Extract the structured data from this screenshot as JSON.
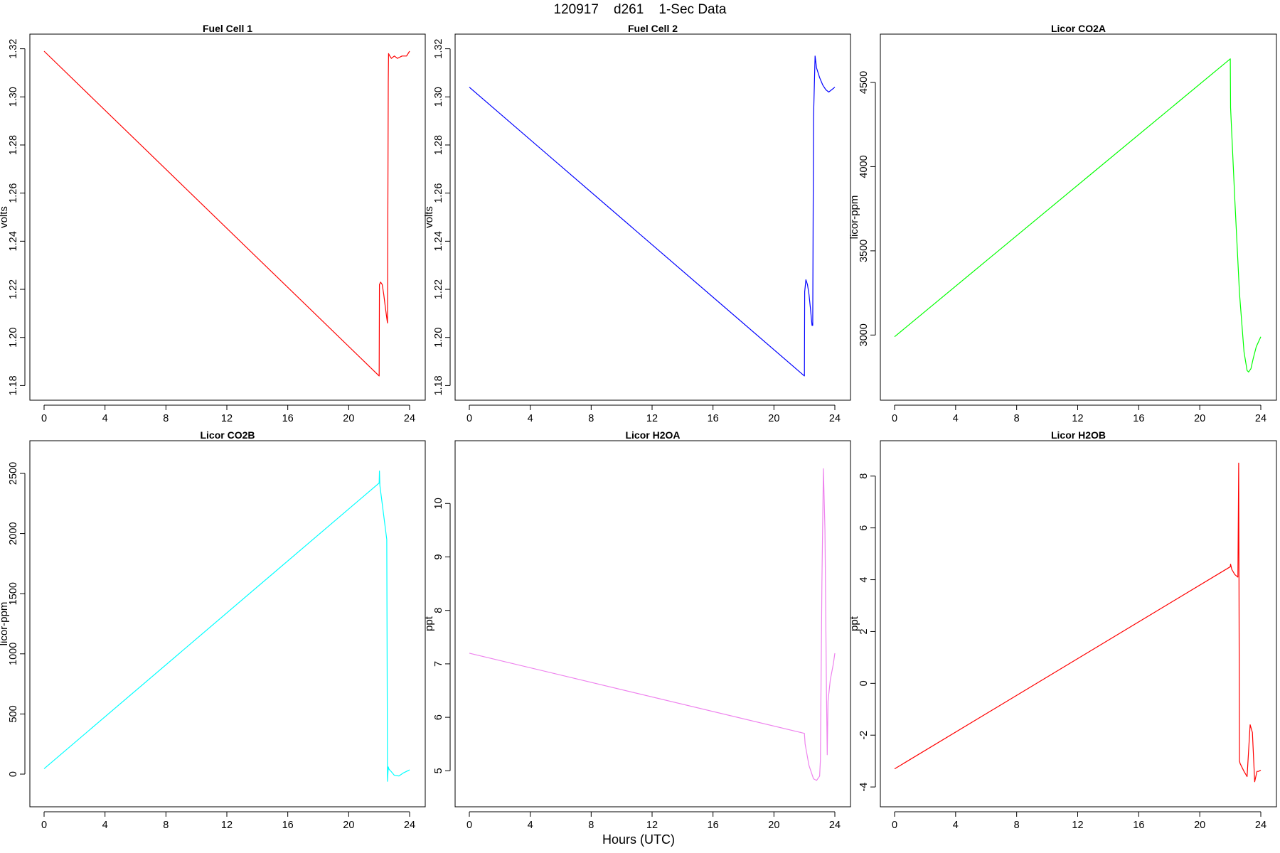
{
  "figure": {
    "title": "120917    d261    1-Sec Data",
    "xlabel": "Hours (UTC)"
  },
  "chart_data": [
    {
      "type": "line",
      "title": "Fuel Cell 1",
      "xlabel": "",
      "ylabel": "volts",
      "xlim": [
        0,
        24
      ],
      "ylim": [
        1.18,
        1.32
      ],
      "xticks": [
        0,
        4,
        8,
        12,
        16,
        20,
        24
      ],
      "yticks": [
        1.18,
        1.2,
        1.22,
        1.24,
        1.26,
        1.28,
        1.3,
        1.32
      ],
      "ytick_labels": [
        "1.18",
        "1.20",
        "1.22",
        "1.24",
        "1.26",
        "1.28",
        "1.30",
        "1.32"
      ],
      "color": "#ff0000",
      "series": [
        {
          "x": [
            0,
            22.0,
            22.02,
            22.1,
            22.2,
            22.3,
            22.4,
            22.5,
            22.55,
            22.6,
            22.62,
            22.7,
            22.8,
            23.0,
            23.2,
            23.5,
            23.8,
            24.0
          ],
          "y": [
            1.319,
            1.184,
            1.222,
            1.223,
            1.222,
            1.218,
            1.213,
            1.208,
            1.206,
            1.306,
            1.318,
            1.317,
            1.316,
            1.317,
            1.316,
            1.317,
            1.317,
            1.319
          ]
        }
      ]
    },
    {
      "type": "line",
      "title": "Fuel Cell 2",
      "xlabel": "",
      "ylabel": "volts",
      "xlim": [
        0,
        24
      ],
      "ylim": [
        1.18,
        1.32
      ],
      "xticks": [
        0,
        4,
        8,
        12,
        16,
        20,
        24
      ],
      "yticks": [
        1.18,
        1.2,
        1.22,
        1.24,
        1.26,
        1.28,
        1.3,
        1.32
      ],
      "ytick_labels": [
        "1.18",
        "1.20",
        "1.22",
        "1.24",
        "1.26",
        "1.28",
        "1.30",
        "1.32"
      ],
      "color": "#0000ff",
      "series": [
        {
          "x": [
            0,
            22.0,
            22.02,
            22.1,
            22.2,
            22.3,
            22.4,
            22.5,
            22.55,
            22.6,
            22.7,
            22.8,
            23.0,
            23.2,
            23.4,
            23.6,
            23.8,
            24.0
          ],
          "y": [
            1.304,
            1.184,
            1.219,
            1.224,
            1.222,
            1.218,
            1.212,
            1.205,
            1.205,
            1.291,
            1.317,
            1.312,
            1.308,
            1.305,
            1.303,
            1.302,
            1.303,
            1.304
          ]
        }
      ]
    },
    {
      "type": "line",
      "title": "Licor CO2A",
      "xlabel": "",
      "ylabel": "licor-ppm",
      "xlim": [
        0,
        24
      ],
      "ylim": [
        2700,
        4700
      ],
      "xticks": [
        0,
        4,
        8,
        12,
        16,
        20,
        24
      ],
      "yticks": [
        3000,
        3500,
        4000,
        4500
      ],
      "ytick_labels": [
        "3000",
        "3500",
        "4000",
        "4500"
      ],
      "color": "#00ff00",
      "series": [
        {
          "x": [
            0,
            22.0,
            22.02,
            22.3,
            22.6,
            22.9,
            23.1,
            23.2,
            23.35,
            23.5,
            23.7,
            24.0
          ],
          "y": [
            2990,
            4640,
            4350,
            3800,
            3250,
            2900,
            2790,
            2780,
            2800,
            2860,
            2930,
            2990
          ]
        }
      ]
    },
    {
      "type": "line",
      "title": "Licor CO2B",
      "xlabel": "",
      "ylabel": "licor-ppm",
      "xlim": [
        0,
        24
      ],
      "ylim": [
        -150,
        2650
      ],
      "xticks": [
        0,
        4,
        8,
        12,
        16,
        20,
        24
      ],
      "yticks": [
        0,
        500,
        1000,
        1500,
        2000,
        2500
      ],
      "ytick_labels": [
        "0",
        "500",
        "1000",
        "1500",
        "2000",
        "2500"
      ],
      "color": "#00ffff",
      "series": [
        {
          "x": [
            0,
            22.0,
            22.02,
            22.05,
            22.3,
            22.5,
            22.55,
            22.6,
            22.65,
            22.8,
            23.0,
            23.3,
            23.6,
            24.0
          ],
          "y": [
            45,
            2420,
            2520,
            2400,
            2150,
            1950,
            -60,
            60,
            40,
            20,
            -10,
            -15,
            10,
            35
          ]
        }
      ]
    },
    {
      "type": "line",
      "title": "Licor H2OA",
      "xlabel": "",
      "ylabel": "ppt",
      "xlim": [
        0,
        24
      ],
      "ylim": [
        4.6,
        10.9
      ],
      "xticks": [
        0,
        4,
        8,
        12,
        16,
        20,
        24
      ],
      "yticks": [
        5,
        6,
        7,
        8,
        9,
        10
      ],
      "ytick_labels": [
        "5",
        "6",
        "7",
        "8",
        "9",
        "10"
      ],
      "color": "#ee82ee",
      "series": [
        {
          "x": [
            0,
            22.0,
            22.05,
            22.3,
            22.6,
            22.8,
            23.0,
            23.05,
            23.15,
            23.25,
            23.35,
            23.45,
            23.5,
            23.55,
            23.7,
            23.9,
            24.0
          ],
          "y": [
            7.2,
            5.7,
            5.5,
            5.1,
            4.85,
            4.82,
            4.9,
            5.2,
            8.5,
            10.65,
            9.5,
            6.5,
            5.3,
            6.3,
            6.7,
            7.0,
            7.2
          ]
        }
      ]
    },
    {
      "type": "line",
      "title": "Licor H2OB",
      "xlabel": "",
      "ylabel": "ppt",
      "xlim": [
        0,
        24
      ],
      "ylim": [
        -4.2,
        8.8
      ],
      "xticks": [
        0,
        4,
        8,
        12,
        16,
        20,
        24
      ],
      "yticks": [
        -4,
        -2,
        0,
        2,
        4,
        6,
        8
      ],
      "ytick_labels": [
        "-4",
        "-2",
        "0",
        "2",
        "4",
        "6",
        "8"
      ],
      "color": "#ff0000",
      "series": [
        {
          "x": [
            0,
            22.0,
            22.02,
            22.1,
            22.3,
            22.5,
            22.55,
            22.6,
            22.65,
            22.9,
            23.1,
            23.3,
            23.45,
            23.6,
            23.75,
            23.85,
            24.0
          ],
          "y": [
            -3.3,
            4.5,
            4.6,
            4.4,
            4.2,
            4.1,
            8.5,
            -3.0,
            -3.1,
            -3.4,
            -3.6,
            -1.6,
            -1.9,
            -3.8,
            -3.4,
            -3.4,
            -3.35
          ]
        }
      ]
    }
  ]
}
